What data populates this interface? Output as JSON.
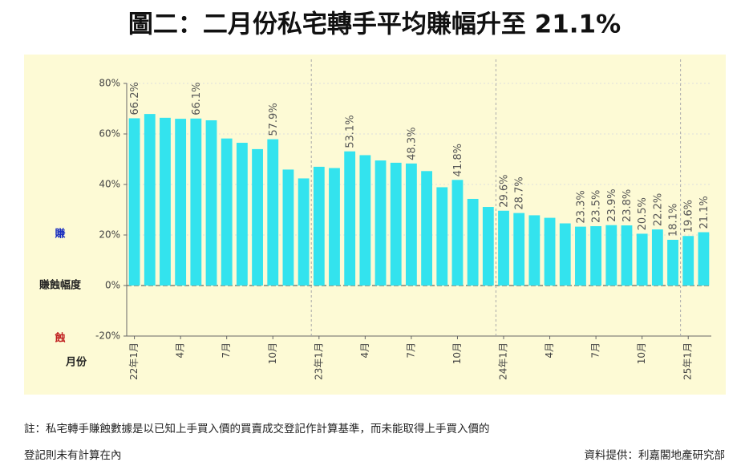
{
  "chart_data": {
    "type": "bar",
    "title": "圖二：二月份私宅轉手平均賺幅升至 21.1%",
    "y_label_positive": "賺",
    "y_label": "賺蝕幅度",
    "y_label_negative": "蝕",
    "x_label": "月份",
    "categories": [
      "22年1月",
      null,
      null,
      "4月",
      null,
      null,
      "7月",
      null,
      null,
      "10月",
      null,
      null,
      "23年1月",
      null,
      null,
      "4月",
      null,
      null,
      "7月",
      null,
      null,
      "10月",
      null,
      null,
      "24年1月",
      null,
      null,
      "4月",
      null,
      null,
      "7月",
      null,
      null,
      "10月",
      null,
      null,
      "25年1月",
      null
    ],
    "values": [
      66.2,
      67.9,
      66.4,
      66.0,
      66.1,
      65.4,
      58.2,
      56.5,
      54.0,
      57.9,
      45.9,
      42.4,
      47.0,
      46.5,
      53.1,
      51.6,
      49.5,
      48.6,
      48.3,
      45.3,
      38.9,
      41.8,
      34.3,
      31.1,
      29.6,
      28.7,
      27.8,
      26.8,
      24.6,
      23.3,
      23.5,
      23.9,
      23.8,
      20.5,
      22.2,
      18.1,
      19.6,
      21.1
    ],
    "value_labels": [
      "66.2%",
      null,
      null,
      null,
      "66.1%",
      null,
      null,
      null,
      null,
      "57.9%",
      null,
      null,
      null,
      null,
      "53.1%",
      null,
      null,
      null,
      "48.3%",
      null,
      null,
      "41.8%",
      null,
      null,
      "29.6%",
      "28.7%",
      null,
      null,
      null,
      "23.3%",
      "23.5%",
      "23.9%",
      "23.8%",
      "20.5%",
      "22.2%",
      "18.1%",
      "19.6%",
      "21.1%"
    ],
    "color": "#33e3ee",
    "ylim": [
      -20,
      80
    ],
    "yticks": [
      {
        "value": -20,
        "label": "-20%"
      },
      {
        "value": 0,
        "label": "0%"
      },
      {
        "value": 20,
        "label": "20%"
      },
      {
        "value": 40,
        "label": "40%"
      },
      {
        "value": 60,
        "label": "60%"
      },
      {
        "value": 80,
        "label": "80%"
      }
    ],
    "grid": true,
    "note_line1": "註：私宅轉手賺蝕數據是以已知上手買入價的買賣成交登記作計算基準，而未能取得上手買入價的",
    "note_line2": "登記則未有計算在內",
    "source": "資料提供：利嘉閣地產研究部"
  }
}
